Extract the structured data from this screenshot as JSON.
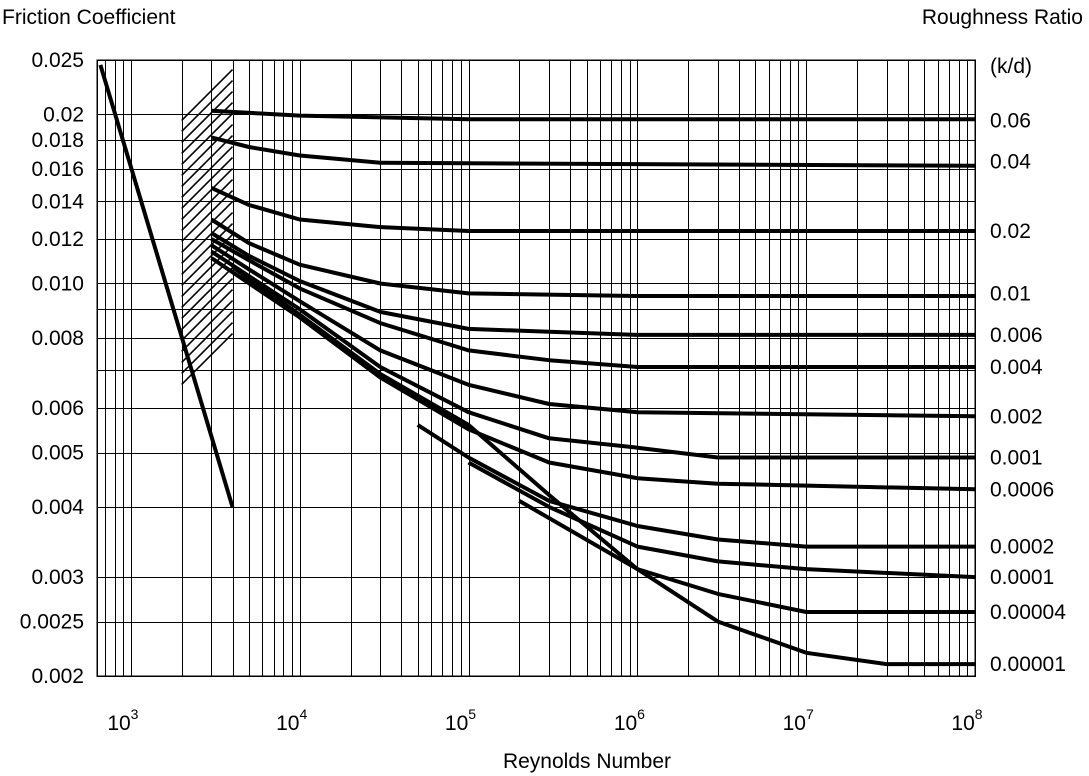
{
  "chart_data": {
    "type": "line",
    "title_left": "Friction Coefficient",
    "title_right": "Roughness Ratio",
    "right_axis_header": "(k/d)",
    "xlabel": "Reynolds Number",
    "x_scale": "log",
    "y_scale": "log",
    "xlim": [
      630,
      100000000
    ],
    "ylim": [
      0.002,
      0.025
    ],
    "x_ticks": [
      {
        "value": 1000,
        "base": "10",
        "exp": "3"
      },
      {
        "value": 10000,
        "base": "10",
        "exp": "4"
      },
      {
        "value": 100000,
        "base": "10",
        "exp": "5"
      },
      {
        "value": 1000000,
        "base": "10",
        "exp": "6"
      },
      {
        "value": 10000000,
        "base": "10",
        "exp": "7"
      },
      {
        "value": 100000000,
        "base": "10",
        "exp": "8"
      }
    ],
    "y_ticks": [
      {
        "value": 0.025,
        "label": "0.025"
      },
      {
        "value": 0.02,
        "label": "0.02"
      },
      {
        "value": 0.018,
        "label": "0.018"
      },
      {
        "value": 0.016,
        "label": "0.016"
      },
      {
        "value": 0.014,
        "label": "0.014"
      },
      {
        "value": 0.012,
        "label": "0.012"
      },
      {
        "value": 0.01,
        "label": "0.010"
      },
      {
        "value": 0.008,
        "label": "0.008"
      },
      {
        "value": 0.006,
        "label": "0.006"
      },
      {
        "value": 0.005,
        "label": "0.005"
      },
      {
        "value": 0.004,
        "label": "0.004"
      },
      {
        "value": 0.003,
        "label": "0.003"
      },
      {
        "value": 0.0025,
        "label": "0.0025"
      },
      {
        "value": 0.002,
        "label": "0.002"
      }
    ],
    "grid": true,
    "laminar": [
      [
        660,
        0.0245
      ],
      [
        4000,
        0.004
      ]
    ],
    "hatch_region": {
      "x_range": [
        2000,
        4000
      ],
      "y_range": [
        0.007,
        0.0205
      ]
    },
    "series": [
      {
        "name": "0.06",
        "label_y": 0.0195,
        "points": [
          [
            3000,
            0.0203
          ],
          [
            10000,
            0.0199
          ],
          [
            100000,
            0.0196
          ],
          [
            100000000,
            0.0196
          ]
        ]
      },
      {
        "name": "0.04",
        "label_y": 0.0165,
        "points": [
          [
            3000,
            0.0182
          ],
          [
            5000,
            0.0175
          ],
          [
            10000,
            0.0169
          ],
          [
            30000,
            0.0164
          ],
          [
            100000000,
            0.0162
          ]
        ]
      },
      {
        "name": "0.02",
        "label_y": 0.0124,
        "points": [
          [
            3000,
            0.0148
          ],
          [
            5000,
            0.0138
          ],
          [
            10000,
            0.013
          ],
          [
            30000,
            0.0126
          ],
          [
            100000,
            0.0124
          ],
          [
            100000000,
            0.0124
          ]
        ]
      },
      {
        "name": "0.01",
        "label_y": 0.0096,
        "points": [
          [
            3000,
            0.013
          ],
          [
            5000,
            0.0118
          ],
          [
            10000,
            0.0108
          ],
          [
            30000,
            0.01
          ],
          [
            100000,
            0.0096
          ],
          [
            1000000,
            0.0095
          ],
          [
            100000000,
            0.0095
          ]
        ]
      },
      {
        "name": "0.006",
        "label_y": 0.0081,
        "points": [
          [
            3000,
            0.0123
          ],
          [
            5000,
            0.0112
          ],
          [
            10000,
            0.0101
          ],
          [
            30000,
            0.0089
          ],
          [
            100000,
            0.0083
          ],
          [
            1000000,
            0.0081
          ],
          [
            100000000,
            0.0081
          ]
        ]
      },
      {
        "name": "0.004",
        "label_y": 0.0071,
        "points": [
          [
            3000,
            0.012
          ],
          [
            5000,
            0.011
          ],
          [
            10000,
            0.0098
          ],
          [
            30000,
            0.0085
          ],
          [
            100000,
            0.0076
          ],
          [
            300000,
            0.0073
          ],
          [
            1000000,
            0.0071
          ],
          [
            100000000,
            0.0071
          ]
        ]
      },
      {
        "name": "0.002",
        "label_y": 0.0058,
        "points": [
          [
            3000,
            0.0117
          ],
          [
            5000,
            0.0106
          ],
          [
            10000,
            0.0093
          ],
          [
            30000,
            0.0076
          ],
          [
            100000,
            0.0066
          ],
          [
            300000,
            0.0061
          ],
          [
            1000000,
            0.0059
          ],
          [
            100000000,
            0.0058
          ]
        ]
      },
      {
        "name": "0.001",
        "label_y": 0.0049,
        "points": [
          [
            3000,
            0.0114
          ],
          [
            10000,
            0.009
          ],
          [
            30000,
            0.0071
          ],
          [
            100000,
            0.0059
          ],
          [
            300000,
            0.0053
          ],
          [
            1000000,
            0.0051
          ],
          [
            3000000,
            0.0049
          ],
          [
            100000000,
            0.0049
          ]
        ]
      },
      {
        "name": "0.0006",
        "label_y": 0.0043,
        "points": [
          [
            3000,
            0.0111
          ],
          [
            10000,
            0.0087
          ],
          [
            30000,
            0.0068
          ],
          [
            100000,
            0.0055
          ],
          [
            300000,
            0.0048
          ],
          [
            1000000,
            0.0045
          ],
          [
            3000000,
            0.0044
          ],
          [
            100000000,
            0.0043
          ]
        ]
      },
      {
        "name": "0.0002",
        "label_y": 0.0034,
        "points": [
          [
            50000,
            0.0056
          ],
          [
            100000,
            0.0049
          ],
          [
            300000,
            0.0041
          ],
          [
            1000000,
            0.0037
          ],
          [
            3000000,
            0.0035
          ],
          [
            10000000,
            0.0034
          ],
          [
            100000000,
            0.0034
          ]
        ]
      },
      {
        "name": "0.0001",
        "label_y": 0.003,
        "points": [
          [
            100000,
            0.0048
          ],
          [
            300000,
            0.004
          ],
          [
            1000000,
            0.0034
          ],
          [
            3000000,
            0.0032
          ],
          [
            10000000,
            0.0031
          ],
          [
            100000000,
            0.003
          ]
        ]
      },
      {
        "name": "0.00004",
        "label_y": 0.0026,
        "points": [
          [
            200000,
            0.0041
          ],
          [
            1000000,
            0.0031
          ],
          [
            3000000,
            0.0028
          ],
          [
            10000000,
            0.0026
          ],
          [
            100000000,
            0.0026
          ]
        ]
      },
      {
        "name": "0.00001",
        "label_y": 0.0021,
        "points": [
          [
            4000,
            0.0107
          ],
          [
            10000,
            0.0088
          ],
          [
            30000,
            0.0069
          ],
          [
            100000,
            0.0056
          ],
          [
            300000,
            0.0042
          ],
          [
            1000000,
            0.0031
          ],
          [
            3000000,
            0.0025
          ],
          [
            10000000,
            0.0022
          ],
          [
            30000000,
            0.0021
          ],
          [
            100000000,
            0.0021
          ]
        ]
      }
    ]
  }
}
